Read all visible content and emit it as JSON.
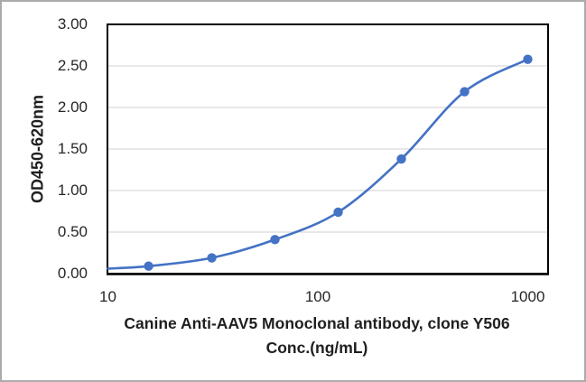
{
  "chart_data": {
    "type": "scatter",
    "series": [
      {
        "name": "Canine Anti-AAV5 Monoclonal antibody, clone Y506",
        "x": [
          15.625,
          31.25,
          62.5,
          125,
          250,
          500,
          1000
        ],
        "y": [
          0.09,
          0.19,
          0.41,
          0.74,
          1.38,
          2.19,
          2.58
        ],
        "marker": "circle",
        "trend_line": true,
        "trend_start": {
          "x": 10,
          "y": 0.06
        }
      }
    ],
    "title": "",
    "ylabel": "OD450-620nm",
    "xlabel_line1": "Canine Anti-AAV5 Monoclonal antibody, clone Y506",
    "xlabel_line2": "Conc.(ng/mL)",
    "x_scale": "log",
    "xlim": [
      10,
      1250
    ],
    "ylim": [
      0,
      3
    ],
    "x_ticks": [
      {
        "value": 10,
        "label": "10"
      },
      {
        "value": 100,
        "label": "100"
      },
      {
        "value": 1000,
        "label": "1000"
      }
    ],
    "y_ticks": [
      {
        "value": 3.0,
        "label": "3.00"
      },
      {
        "value": 2.5,
        "label": "2.50"
      },
      {
        "value": 2.0,
        "label": "2.00"
      },
      {
        "value": 1.5,
        "label": "1.50"
      },
      {
        "value": 1.0,
        "label": "1.00"
      },
      {
        "value": 0.5,
        "label": "0.50"
      },
      {
        "value": 0.0,
        "label": "0.00"
      }
    ],
    "grid": true,
    "legend": "none",
    "colors": {
      "line": "#4472C4",
      "marker": "#4472C4",
      "gridline": "#D9D9D9",
      "plot_border": "#000000",
      "axis_line": "#000000",
      "text": "#262626",
      "outer_frame": "#ababab",
      "background": "#ffffff"
    }
  }
}
